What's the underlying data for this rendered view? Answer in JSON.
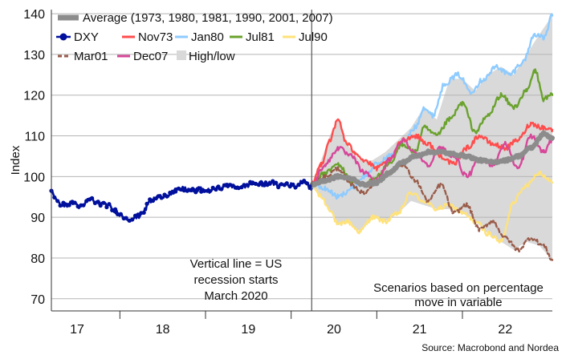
{
  "chart_data": {
    "type": "line",
    "ylabel": "Index",
    "ylim": [
      67,
      141
    ],
    "yticks": [
      70,
      80,
      90,
      100,
      110,
      120,
      130,
      140
    ],
    "xlim": [
      2016.7,
      2022.55
    ],
    "year_labels": [
      {
        "text": "17",
        "x": 2017.0
      },
      {
        "text": "18",
        "x": 2018.0
      },
      {
        "text": "19",
        "x": 2019.0
      },
      {
        "text": "20",
        "x": 2020.0
      },
      {
        "text": "21",
        "x": 2021.0
      },
      {
        "text": "22",
        "x": 2022.0
      }
    ],
    "year_boundaries": [
      2017.5,
      2018.5,
      2019.5,
      2020.5,
      2021.5
    ],
    "recession_line_x": 2019.74,
    "legend": [
      {
        "key": "average",
        "label": "Average (1973, 1980, 1981, 1990, 2001, 2007)"
      },
      {
        "key": "dxy",
        "label": "DXY"
      },
      {
        "key": "nov73",
        "label": "Nov73"
      },
      {
        "key": "jan80",
        "label": "Jan80"
      },
      {
        "key": "jul81",
        "label": "Jul81"
      },
      {
        "key": "jul90",
        "label": "Jul90"
      },
      {
        "key": "mar01",
        "label": "Mar01"
      },
      {
        "key": "dec07",
        "label": "Dec07"
      },
      {
        "key": "highlow",
        "label": "High/low"
      }
    ],
    "annotations": {
      "recession": [
        "Vertical line = US",
        "recession starts",
        "March 2020"
      ],
      "scenarios": [
        "Scenarios based on percentage",
        "move in variable"
      ]
    },
    "source": "Source: Macrobond and Nordea",
    "colors": {
      "dxy": "#00109c",
      "average": "#8c8c8c",
      "nov73": "#ff4d4d",
      "jan80": "#8ecbff",
      "jul81": "#6aa22d",
      "jul90": "#ffe27a",
      "mar01": "#9a5c4a",
      "dec07": "#d6479a",
      "highlow": "#d9d9d9"
    },
    "series": [
      {
        "key": "dxy",
        "name": "DXY",
        "x": [
          2016.7,
          2016.78,
          2016.86,
          2016.95,
          2017.05,
          2017.15,
          2017.25,
          2017.35,
          2017.45,
          2017.55,
          2017.62,
          2017.7,
          2017.78,
          2017.85,
          2017.95,
          2018.05,
          2018.15,
          2018.25,
          2018.35,
          2018.45,
          2018.55,
          2018.65,
          2018.75,
          2018.85,
          2018.95,
          2019.05,
          2019.15,
          2019.25,
          2019.35,
          2019.45,
          2019.55,
          2019.65,
          2019.74
        ],
        "values": [
          96.5,
          93.5,
          93.0,
          93.5,
          92.5,
          94.5,
          93.5,
          93.0,
          91.5,
          90.0,
          89.5,
          90.0,
          91.5,
          94.0,
          95.0,
          95.5,
          96.5,
          97.0,
          96.5,
          96.8,
          96.5,
          97.2,
          97.8,
          97.4,
          97.6,
          98.3,
          98.1,
          98.6,
          97.8,
          98.2,
          97.5,
          99.0,
          97.0
        ]
      },
      {
        "key": "average",
        "name": "Average (1973, 1980, 1981, 1990, 2001, 2007)",
        "x": [
          2019.74,
          2019.9,
          2020.05,
          2020.2,
          2020.35,
          2020.5,
          2020.65,
          2020.8,
          2020.95,
          2021.1,
          2021.25,
          2021.4,
          2021.55,
          2021.7,
          2021.85,
          2022.0,
          2022.15,
          2022.3,
          2022.45,
          2022.55
        ],
        "values": [
          98.0,
          99.0,
          100.0,
          99.5,
          98.0,
          98.5,
          101.0,
          103.5,
          105.0,
          106.0,
          106.0,
          105.5,
          105.0,
          104.0,
          103.5,
          104.0,
          105.0,
          107.0,
          110.5,
          109.5
        ]
      },
      {
        "key": "nov73",
        "name": "Nov73",
        "x": [
          2019.74,
          2019.85,
          2019.95,
          2020.05,
          2020.15,
          2020.25,
          2020.35,
          2020.5,
          2020.65,
          2020.8,
          2020.95,
          2021.1,
          2021.25,
          2021.4,
          2021.55,
          2021.7,
          2021.85,
          2022.0,
          2022.15,
          2022.3,
          2022.45,
          2022.55
        ],
        "values": [
          98.0,
          103.0,
          109.0,
          114.0,
          108.0,
          106.0,
          104.0,
          102.0,
          104.0,
          109.0,
          110.0,
          108.0,
          105.0,
          103.0,
          107.0,
          110.0,
          108.0,
          107.0,
          109.0,
          113.0,
          112.0,
          111.5
        ]
      },
      {
        "key": "jan80",
        "name": "Jan80",
        "x": [
          2019.74,
          2019.9,
          2020.05,
          2020.2,
          2020.35,
          2020.5,
          2020.65,
          2020.8,
          2020.95,
          2021.05,
          2021.15,
          2021.3,
          2021.45,
          2021.6,
          2021.75,
          2021.9,
          2022.05,
          2022.2,
          2022.35,
          2022.45,
          2022.55
        ],
        "values": [
          98.0,
          97.0,
          95.0,
          97.0,
          100.0,
          103.0,
          105.0,
          108.0,
          112.0,
          117.0,
          115.0,
          123.0,
          125.0,
          121.0,
          124.0,
          127.0,
          125.0,
          128.0,
          135.0,
          134.0,
          139.5
        ]
      },
      {
        "key": "jul81",
        "name": "Jul81",
        "x": [
          2019.74,
          2019.9,
          2020.05,
          2020.2,
          2020.35,
          2020.5,
          2020.65,
          2020.8,
          2020.95,
          2021.05,
          2021.2,
          2021.35,
          2021.5,
          2021.65,
          2021.8,
          2021.95,
          2022.1,
          2022.25,
          2022.35,
          2022.45,
          2022.55
        ],
        "values": [
          98.0,
          101.0,
          103.0,
          99.0,
          98.0,
          100.0,
          103.0,
          108.0,
          106.0,
          112.0,
          110.0,
          114.0,
          118.0,
          111.0,
          115.0,
          120.0,
          117.0,
          121.0,
          126.0,
          119.0,
          120.0
        ]
      },
      {
        "key": "jul90",
        "name": "Jul90",
        "x": [
          2019.74,
          2019.85,
          2019.95,
          2020.05,
          2020.15,
          2020.3,
          2020.45,
          2020.6,
          2020.75,
          2020.9,
          2021.05,
          2021.2,
          2021.35,
          2021.5,
          2021.65,
          2021.8,
          2021.95,
          2022.1,
          2022.25,
          2022.4,
          2022.55
        ],
        "values": [
          98.0,
          95.0,
          92.0,
          88.0,
          89.0,
          86.5,
          90.0,
          89.0,
          91.0,
          96.0,
          94.0,
          92.0,
          93.0,
          91.0,
          89.0,
          86.0,
          84.0,
          94.0,
          98.0,
          101.0,
          98.5
        ]
      },
      {
        "key": "mar01",
        "name": "Mar01",
        "x": [
          2019.74,
          2019.9,
          2020.05,
          2020.2,
          2020.35,
          2020.5,
          2020.65,
          2020.8,
          2020.95,
          2021.1,
          2021.25,
          2021.4,
          2021.55,
          2021.7,
          2021.85,
          2022.0,
          2022.15,
          2022.3,
          2022.45,
          2022.55
        ],
        "values": [
          98.0,
          100.0,
          102.0,
          98.0,
          96.0,
          99.0,
          101.0,
          103.0,
          99.0,
          94.0,
          98.0,
          91.0,
          93.0,
          87.0,
          89.0,
          85.0,
          82.0,
          85.0,
          83.0,
          79.5
        ]
      },
      {
        "key": "dec07",
        "name": "Dec07",
        "x": [
          2019.74,
          2019.9,
          2020.05,
          2020.2,
          2020.35,
          2020.5,
          2020.65,
          2020.8,
          2020.95,
          2021.1,
          2021.25,
          2021.4,
          2021.55,
          2021.7,
          2021.85,
          2022.0,
          2022.15,
          2022.3,
          2022.45,
          2022.55
        ],
        "values": [
          98.0,
          103.0,
          107.0,
          105.0,
          101.0,
          99.0,
          104.0,
          109.0,
          106.0,
          103.0,
          107.0,
          105.0,
          100.0,
          104.0,
          103.0,
          108.0,
          102.0,
          110.0,
          106.0,
          109.0
        ]
      }
    ],
    "band": {
      "key": "highlow",
      "name": "High/low",
      "x": [
        2019.74,
        2019.85,
        2019.95,
        2020.05,
        2020.15,
        2020.3,
        2020.45,
        2020.6,
        2020.75,
        2020.9,
        2021.05,
        2021.2,
        2021.35,
        2021.5,
        2021.65,
        2021.8,
        2021.95,
        2022.1,
        2022.25,
        2022.4,
        2022.55
      ],
      "high": [
        98.5,
        104.0,
        110.0,
        114.0,
        108.0,
        104.0,
        104.0,
        106.0,
        109.0,
        112.0,
        117.0,
        114.0,
        124.0,
        124.0,
        121.0,
        125.0,
        127.0,
        125.0,
        130.0,
        135.0,
        139.5
      ],
      "low": [
        97.5,
        95.0,
        92.0,
        88.0,
        89.0,
        86.5,
        90.0,
        89.0,
        91.0,
        94.0,
        93.0,
        92.0,
        92.0,
        91.0,
        89.0,
        86.0,
        84.0,
        82.0,
        84.0,
        83.0,
        79.5
      ]
    }
  }
}
